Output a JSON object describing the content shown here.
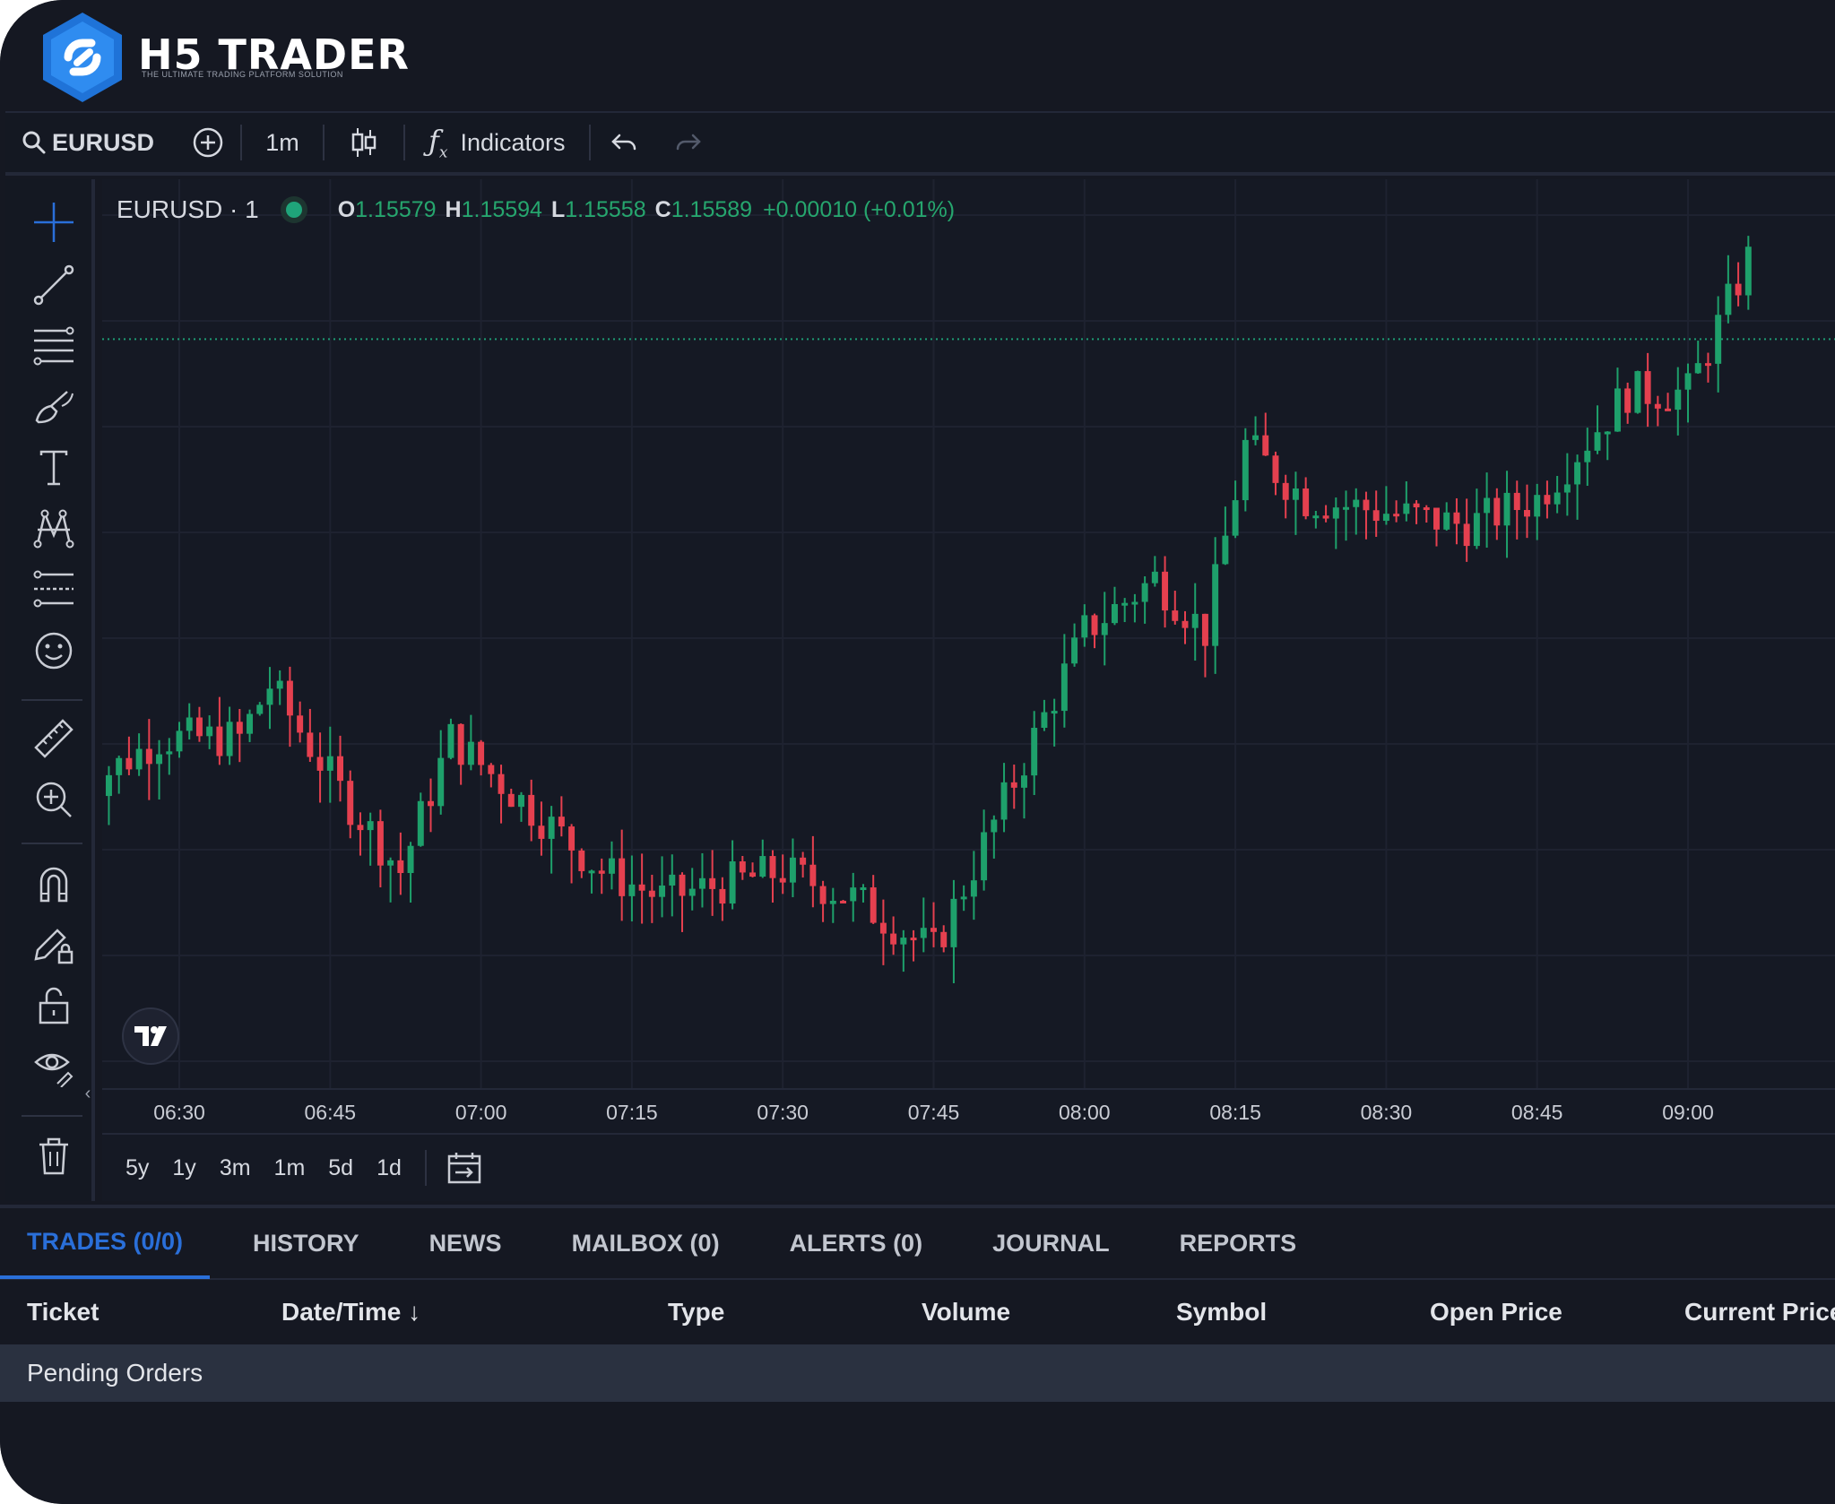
{
  "app": {
    "brand_left": "H5",
    "brand_right": "TRADER",
    "tagline": "THE ULTIMATE TRADING PLATFORM SOLUTION"
  },
  "toolbar": {
    "symbol": "EURUSD",
    "interval": "1m",
    "indicators_label": "Indicators"
  },
  "legend": {
    "symbol": "EURUSD · 1",
    "o_label": "O",
    "o_value": "1.15579",
    "h_label": "H",
    "h_value": "1.15594",
    "l_label": "L",
    "l_value": "1.15558",
    "c_label": "C",
    "c_value": "1.15589",
    "change": "+0.00010 (+0.01%)"
  },
  "time_axis": [
    "06:30",
    "06:45",
    "07:00",
    "07:15",
    "07:30",
    "07:45",
    "08:00",
    "08:15",
    "08:30",
    "08:45",
    "09:00"
  ],
  "ranges": [
    "5y",
    "1y",
    "3m",
    "1m",
    "5d",
    "1d"
  ],
  "tabs": [
    "TRADES (0/0)",
    "HISTORY",
    "NEWS",
    "MAILBOX (0)",
    "ALERTS (0)",
    "JOURNAL",
    "REPORTS"
  ],
  "table_headers": [
    "Ticket",
    "Date/Time",
    "Type",
    "Volume",
    "Symbol",
    "Open Price",
    "Current Price"
  ],
  "pending_orders_label": "Pending Orders",
  "colors": {
    "up": "#1ea06b",
    "down": "#e5404f",
    "accent": "#2a6fd9",
    "background": "#151822"
  },
  "chart_data": {
    "type": "candlestick",
    "symbol": "EURUSD",
    "interval": "1m",
    "x_range": [
      "06:20",
      "09:10"
    ],
    "trend": [
      {
        "time": "06:20",
        "close": 1.1549
      },
      {
        "time": "06:28",
        "close": 1.1551
      },
      {
        "time": "06:36",
        "close": 1.1551
      },
      {
        "time": "06:39",
        "close": 1.1553
      },
      {
        "time": "06:46",
        "close": 1.1549
      },
      {
        "time": "06:52",
        "close": 1.1546
      },
      {
        "time": "06:57",
        "close": 1.1551
      },
      {
        "time": "07:06",
        "close": 1.1548
      },
      {
        "time": "07:12",
        "close": 1.1546
      },
      {
        "time": "07:18",
        "close": 1.1545
      },
      {
        "time": "07:30",
        "close": 1.1546
      },
      {
        "time": "07:37",
        "close": 1.1545
      },
      {
        "time": "07:45",
        "close": 1.1543
      },
      {
        "time": "07:50",
        "close": 1.1547
      },
      {
        "time": "07:55",
        "close": 1.1551
      },
      {
        "time": "08:00",
        "close": 1.1555
      },
      {
        "time": "08:07",
        "close": 1.1557
      },
      {
        "time": "08:12",
        "close": 1.1555
      },
      {
        "time": "08:16",
        "close": 1.1562
      },
      {
        "time": "08:22",
        "close": 1.156
      },
      {
        "time": "08:38",
        "close": 1.1559
      },
      {
        "time": "08:45",
        "close": 1.156
      },
      {
        "time": "08:54",
        "close": 1.1564
      },
      {
        "time": "09:00",
        "close": 1.1564
      },
      {
        "time": "09:06",
        "close": 1.1569
      }
    ]
  }
}
